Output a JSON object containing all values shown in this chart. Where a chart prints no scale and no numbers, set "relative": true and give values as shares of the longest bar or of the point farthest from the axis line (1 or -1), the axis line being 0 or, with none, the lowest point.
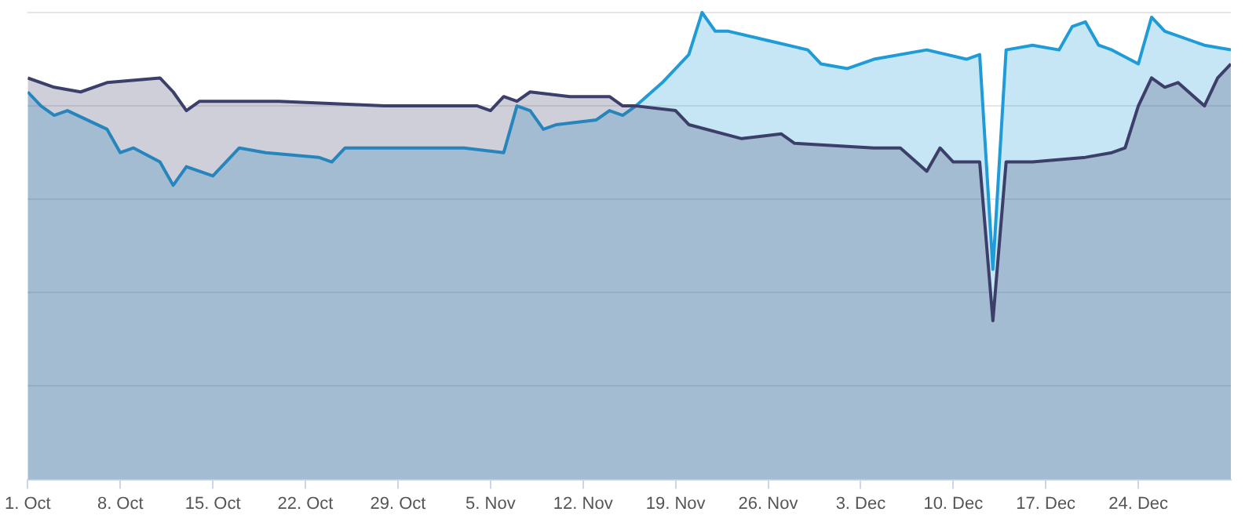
{
  "chart_data": {
    "type": "area",
    "relative": true,
    "grid": "y",
    "legend": false,
    "marker": "none",
    "line_style": "solid",
    "xlim": [
      "--10-01",
      "--12-31"
    ],
    "xticks": [
      {
        "value": "--10-01",
        "label": "1. Oct"
      },
      {
        "value": "--10-08",
        "label": "8. Oct"
      },
      {
        "value": "--10-15",
        "label": "15. Oct"
      },
      {
        "value": "--10-22",
        "label": "22. Oct"
      },
      {
        "value": "--10-29",
        "label": "29. Oct"
      },
      {
        "value": "--11-05",
        "label": "5. Nov"
      },
      {
        "value": "--11-12",
        "label": "12. Nov"
      },
      {
        "value": "--11-19",
        "label": "19. Nov"
      },
      {
        "value": "--11-26",
        "label": "26. Nov"
      },
      {
        "value": "--12-03",
        "label": "3. Dec"
      },
      {
        "value": "--12-10",
        "label": "10. Dec"
      },
      {
        "value": "--12-17",
        "label": "17. Dec"
      },
      {
        "value": "--12-24",
        "label": "24. Dec"
      }
    ],
    "series": [
      {
        "color": "#3b3f69",
        "x": [
          "--10-01",
          "--10-03",
          "--10-05",
          "--10-07",
          "--10-11",
          "--10-12",
          "--10-13",
          "--10-14",
          "--10-16",
          "--10-20",
          "--10-28",
          "--11-04",
          "--11-05",
          "--11-06",
          "--11-07",
          "--11-08",
          "--11-11",
          "--11-14",
          "--11-15",
          "--11-16",
          "--11-19",
          "--11-20",
          "--11-24",
          "--11-27",
          "--11-28",
          "--12-04",
          "--12-06",
          "--12-08",
          "--12-09",
          "--12-10",
          "--12-12",
          "--12-13",
          "--12-14",
          "--12-16",
          "--12-20",
          "--12-22",
          "--12-23",
          "--12-24",
          "--12-25",
          "--12-26",
          "--12-27",
          "--12-29",
          "--12-30",
          "--12-31"
        ],
        "values": [
          0.86,
          0.84,
          0.83,
          0.85,
          0.86,
          0.83,
          0.79,
          0.81,
          0.81,
          0.81,
          0.8,
          0.8,
          0.79,
          0.82,
          0.81,
          0.83,
          0.82,
          0.82,
          0.8,
          0.8,
          0.79,
          0.76,
          0.73,
          0.74,
          0.72,
          0.71,
          0.71,
          0.66,
          0.71,
          0.68,
          0.68,
          0.34,
          0.68,
          0.68,
          0.69,
          0.7,
          0.71,
          0.8,
          0.86,
          0.84,
          0.85,
          0.8,
          0.86,
          0.89
        ]
      },
      {
        "color": "#1f9cd8",
        "x": [
          "--10-01",
          "--10-02",
          "--10-03",
          "--10-04",
          "--10-07",
          "--10-08",
          "--10-09",
          "--10-11",
          "--10-12",
          "--10-13",
          "--10-15",
          "--10-17",
          "--10-19",
          "--10-23",
          "--10-24",
          "--10-25",
          "--10-30",
          "--11-03",
          "--11-06",
          "--11-07",
          "--11-08",
          "--11-09",
          "--11-10",
          "--11-13",
          "--11-14",
          "--11-15",
          "--11-16",
          "--11-18",
          "--11-20",
          "--11-21",
          "--11-22",
          "--11-23",
          "--11-26",
          "--11-29",
          "--11-30",
          "--12-02",
          "--12-04",
          "--12-08",
          "--12-11",
          "--12-12",
          "--12-13",
          "--12-14",
          "--12-16",
          "--12-18",
          "--12-19",
          "--12-20",
          "--12-21",
          "--12-22",
          "--12-24",
          "--12-25",
          "--12-26",
          "--12-29",
          "--12-31"
        ],
        "values": [
          0.83,
          0.8,
          0.78,
          0.79,
          0.75,
          0.7,
          0.71,
          0.68,
          0.63,
          0.67,
          0.65,
          0.71,
          0.7,
          0.69,
          0.68,
          0.71,
          0.71,
          0.71,
          0.7,
          0.8,
          0.79,
          0.75,
          0.76,
          0.77,
          0.79,
          0.78,
          0.8,
          0.85,
          0.91,
          1.0,
          0.96,
          0.96,
          0.94,
          0.92,
          0.89,
          0.88,
          0.9,
          0.92,
          0.9,
          0.91,
          0.45,
          0.92,
          0.93,
          0.92,
          0.97,
          0.98,
          0.93,
          0.92,
          0.89,
          0.99,
          0.96,
          0.93,
          0.92
        ]
      }
    ]
  }
}
